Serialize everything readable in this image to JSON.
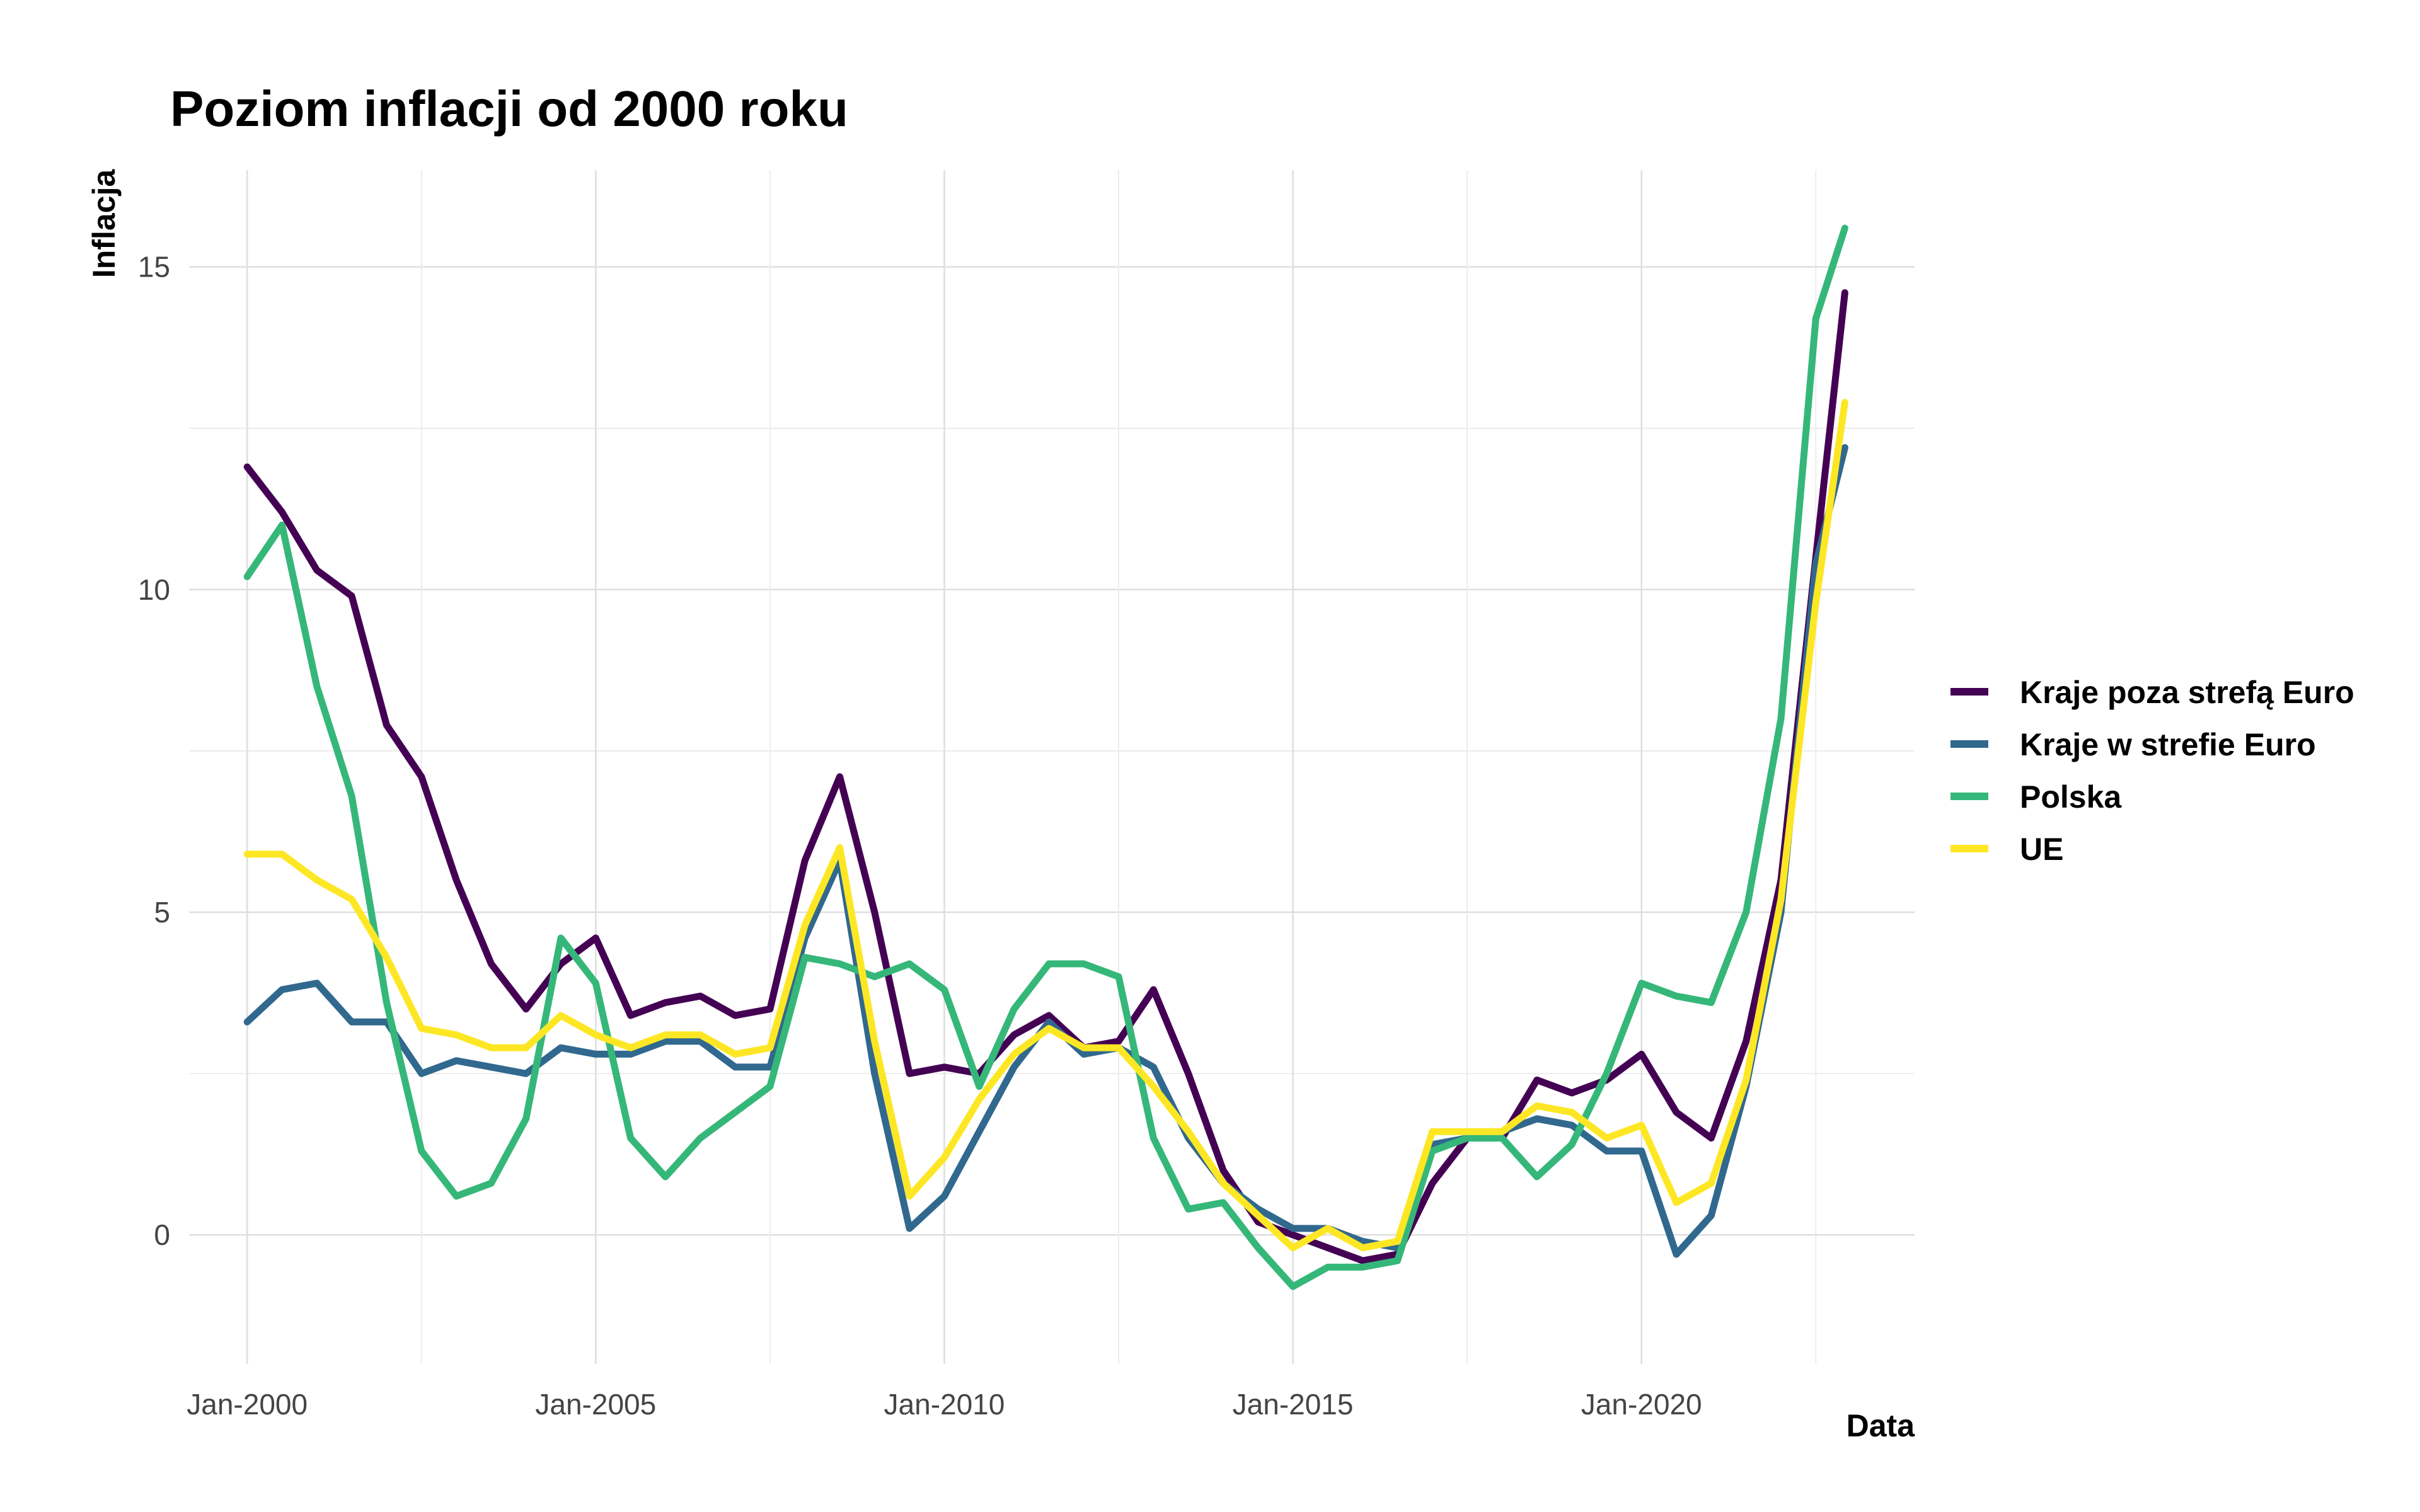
{
  "chart_data": {
    "type": "line",
    "title": "Poziom inflacji od 2000 roku",
    "xlabel": "Data",
    "ylabel": "Inflacja",
    "x_ticks": [
      "Jan-2000",
      "Jan-2005",
      "Jan-2010",
      "Jan-2015",
      "Jan-2020"
    ],
    "y_ticks": [
      "0",
      "5",
      "10",
      "15"
    ],
    "ylim": [
      -2,
      16.5
    ],
    "xlim": [
      "1999-03",
      "2023-12"
    ],
    "grid": true,
    "legend_position": "right",
    "x_points": [
      "2000-01",
      "2000-07",
      "2001-01",
      "2001-07",
      "2002-01",
      "2002-07",
      "2003-01",
      "2003-07",
      "2004-01",
      "2004-07",
      "2005-01",
      "2005-07",
      "2006-01",
      "2006-07",
      "2007-01",
      "2007-07",
      "2008-01",
      "2008-07",
      "2009-01",
      "2009-07",
      "2010-01",
      "2010-07",
      "2011-01",
      "2011-07",
      "2012-01",
      "2012-07",
      "2013-01",
      "2013-07",
      "2014-01",
      "2014-07",
      "2015-01",
      "2015-07",
      "2016-01",
      "2016-07",
      "2017-01",
      "2017-07",
      "2018-01",
      "2018-07",
      "2019-01",
      "2019-07",
      "2020-01",
      "2020-07",
      "2021-01",
      "2021-07",
      "2022-01",
      "2022-07",
      "2022-12"
    ],
    "series": [
      {
        "name": "Kraje poza strefą Euro",
        "color": "#440154",
        "values": [
          11.9,
          11.2,
          10.3,
          9.9,
          7.9,
          7.1,
          5.5,
          4.2,
          3.5,
          4.2,
          4.6,
          3.4,
          3.6,
          3.7,
          3.4,
          3.5,
          5.8,
          7.1,
          5.0,
          2.5,
          2.6,
          2.5,
          3.1,
          3.4,
          2.9,
          3.0,
          3.8,
          2.5,
          1.0,
          0.2,
          0.0,
          -0.2,
          -0.4,
          -0.3,
          0.8,
          1.5,
          1.5,
          2.4,
          2.2,
          2.4,
          2.8,
          1.9,
          1.5,
          3.0,
          5.5,
          10.5,
          14.6
        ]
      },
      {
        "name": "Kraje w strefie Euro",
        "color": "#31688e",
        "values": [
          3.3,
          3.8,
          3.9,
          3.3,
          3.3,
          2.5,
          2.7,
          2.6,
          2.5,
          2.9,
          2.8,
          2.8,
          3.0,
          3.0,
          2.6,
          2.6,
          4.6,
          5.8,
          2.5,
          0.1,
          0.6,
          1.6,
          2.6,
          3.3,
          2.8,
          2.9,
          2.6,
          1.5,
          0.8,
          0.4,
          0.1,
          0.1,
          -0.1,
          -0.2,
          1.4,
          1.5,
          1.6,
          1.8,
          1.7,
          1.3,
          1.3,
          -0.3,
          0.3,
          2.3,
          5.0,
          10.4,
          12.2
        ]
      },
      {
        "name": "Polska",
        "color": "#35b779",
        "values": [
          10.2,
          11.0,
          8.5,
          6.8,
          3.6,
          1.3,
          0.6,
          0.8,
          1.8,
          4.6,
          3.9,
          1.5,
          0.9,
          1.5,
          1.9,
          2.3,
          4.3,
          4.2,
          4.0,
          4.2,
          3.8,
          2.3,
          3.5,
          4.2,
          4.2,
          4.0,
          1.5,
          0.4,
          0.5,
          -0.2,
          -0.8,
          -0.5,
          -0.5,
          -0.4,
          1.3,
          1.5,
          1.5,
          0.9,
          1.4,
          2.5,
          3.9,
          3.7,
          3.6,
          5.0,
          8.0,
          14.2,
          15.6
        ]
      },
      {
        "name": "UE",
        "color": "#fde725",
        "values": [
          5.9,
          5.9,
          5.5,
          5.2,
          4.3,
          3.2,
          3.1,
          2.9,
          2.9,
          3.4,
          3.1,
          2.9,
          3.1,
          3.1,
          2.8,
          2.9,
          4.8,
          6.0,
          3.0,
          0.6,
          1.2,
          2.1,
          2.8,
          3.2,
          2.9,
          2.9,
          2.3,
          1.6,
          0.8,
          0.3,
          -0.2,
          0.1,
          -0.2,
          -0.1,
          1.6,
          1.6,
          1.6,
          2.0,
          1.9,
          1.5,
          1.7,
          0.5,
          0.8,
          2.4,
          5.2,
          9.8,
          12.9
        ]
      }
    ]
  }
}
